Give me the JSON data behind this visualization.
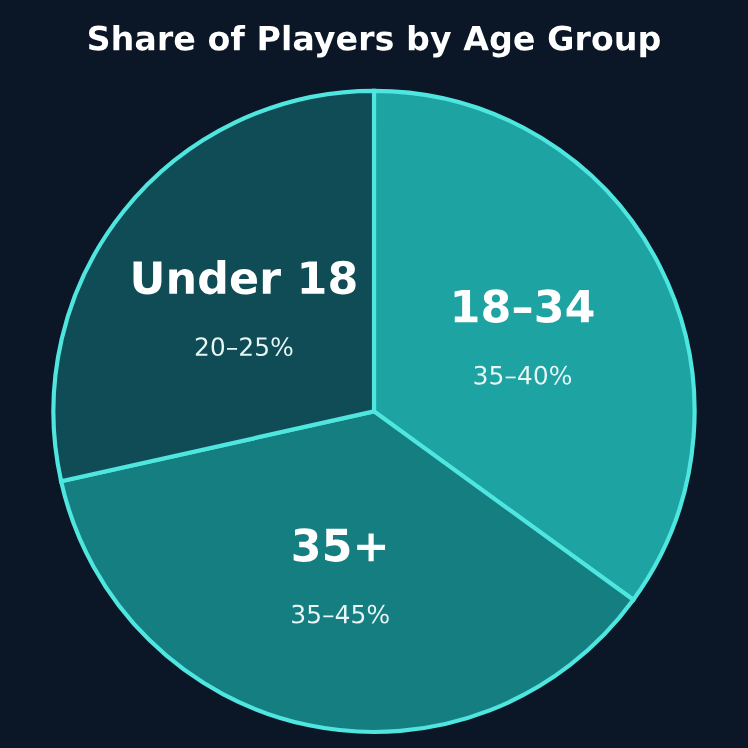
{
  "chart_data": {
    "type": "pie",
    "title": "Share of Players by Age Group",
    "categories": [
      "18–34",
      "35+",
      "Under 18"
    ],
    "values": [
      35,
      36.5,
      28.5
    ],
    "annotations": [
      "35–40%",
      "35–45%",
      "20–25%"
    ],
    "colors": [
      "#1ea3a3",
      "#157e80",
      "#0f4c55"
    ]
  }
}
